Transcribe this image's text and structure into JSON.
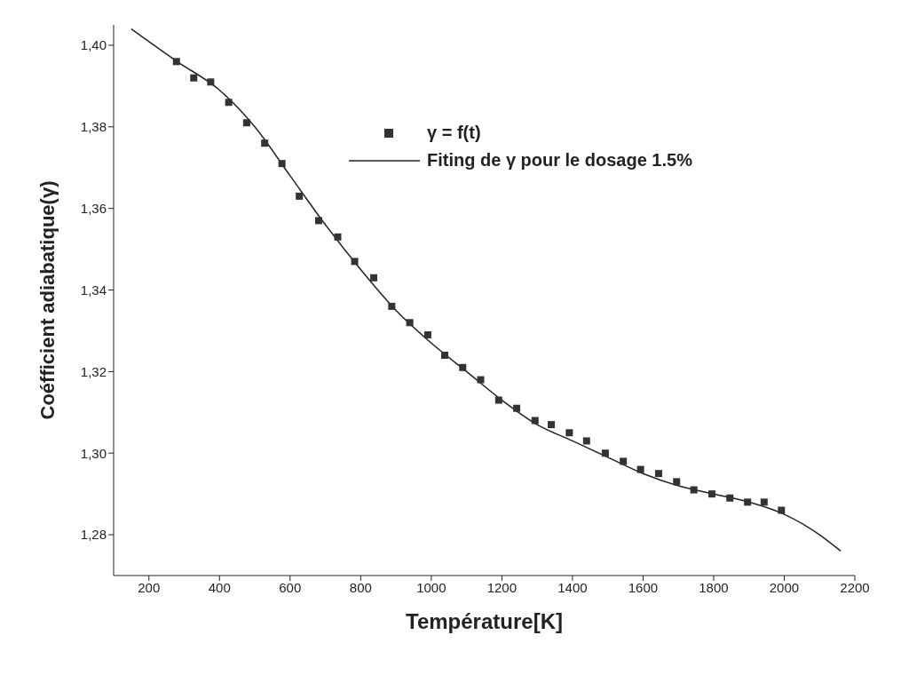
{
  "chart_data": {
    "type": "scatter",
    "xlabel": "Température[K]",
    "ylabel": "Coéfficient adiabatique(γ)",
    "xlim": [
      100,
      2200
    ],
    "xticks": [
      200,
      400,
      600,
      800,
      1000,
      1200,
      1400,
      1600,
      1800,
      2000,
      2200
    ],
    "ylim": [
      1.27,
      1.405
    ],
    "yticks": [
      {
        "value": 1.28,
        "label": "1,28"
      },
      {
        "value": 1.3,
        "label": "1,30"
      },
      {
        "value": 1.32,
        "label": "1,32"
      },
      {
        "value": 1.34,
        "label": "1,34"
      },
      {
        "value": 1.36,
        "label": "1,36"
      },
      {
        "value": 1.38,
        "label": "1,38"
      },
      {
        "value": 1.4,
        "label": "1,40"
      }
    ],
    "grid": false,
    "legend": "top right",
    "series": [
      {
        "name": "γ = f(t)",
        "marker": "square",
        "color": "#333333",
        "x": [
          278,
          327,
          375,
          426,
          477,
          528,
          577,
          626,
          681,
          735,
          783,
          837,
          888,
          939,
          990,
          1038,
          1089,
          1140,
          1191,
          1242,
          1294,
          1340,
          1391,
          1440,
          1493,
          1544,
          1593,
          1644,
          1695,
          1744,
          1795,
          1846,
          1896,
          1943,
          1992
        ],
        "values": [
          1.396,
          1.392,
          1.391,
          1.386,
          1.381,
          1.376,
          1.371,
          1.363,
          1.357,
          1.353,
          1.347,
          1.343,
          1.336,
          1.332,
          1.329,
          1.324,
          1.321,
          1.318,
          1.313,
          1.311,
          1.308,
          1.307,
          1.305,
          1.303,
          1.3,
          1.298,
          1.296,
          1.295,
          1.293,
          1.291,
          1.29,
          1.289,
          1.288,
          1.288,
          1.286
        ]
      },
      {
        "name": "Fiting de γ pour le dosage 1.5%",
        "type": "line",
        "marker": "none",
        "line_style": "solid",
        "color": "#222222",
        "x": [
          150,
          280,
          400,
          500,
          600,
          700,
          800,
          900,
          1000,
          1100,
          1200,
          1300,
          1400,
          1500,
          1600,
          1700,
          1800,
          1900,
          2000,
          2100,
          2160
        ],
        "values": [
          1.404,
          1.396,
          1.389,
          1.38,
          1.368,
          1.356,
          1.345,
          1.335,
          1.327,
          1.32,
          1.313,
          1.307,
          1.303,
          1.299,
          1.295,
          1.292,
          1.29,
          1.288,
          1.285,
          1.28,
          1.276
        ]
      }
    ]
  }
}
